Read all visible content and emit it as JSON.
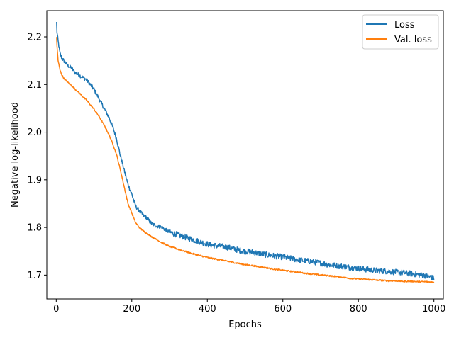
{
  "chart_data": {
    "type": "line",
    "title": "",
    "xlabel": "Epochs",
    "ylabel": "Negative log-likelihood",
    "xlim": [
      -25,
      1025
    ],
    "ylim": [
      1.65,
      2.255
    ],
    "x_ticks": [
      0,
      200,
      400,
      600,
      800,
      1000
    ],
    "y_ticks": [
      1.7,
      1.8,
      1.9,
      2.0,
      2.1,
      2.2
    ],
    "grid": false,
    "legend_position": "top-right",
    "series": [
      {
        "name": "Loss",
        "color": "#1f77b4",
        "noise": "high",
        "x": [
          1,
          2,
          5,
          10,
          15,
          20,
          30,
          40,
          50,
          60,
          70,
          80,
          90,
          100,
          110,
          120,
          130,
          140,
          150,
          160,
          170,
          180,
          190,
          200,
          210,
          220,
          230,
          240,
          250,
          260,
          280,
          300,
          320,
          340,
          360,
          380,
          400,
          420,
          440,
          460,
          480,
          500,
          520,
          540,
          560,
          580,
          600,
          620,
          640,
          660,
          680,
          700,
          720,
          740,
          760,
          780,
          800,
          820,
          840,
          860,
          880,
          900,
          920,
          940,
          960,
          980,
          1000
        ],
        "y": [
          2.23,
          2.21,
          2.19,
          2.165,
          2.155,
          2.15,
          2.14,
          2.135,
          2.125,
          2.12,
          2.115,
          2.11,
          2.1,
          2.09,
          2.075,
          2.06,
          2.045,
          2.03,
          2.01,
          1.985,
          1.95,
          1.92,
          1.89,
          1.87,
          1.845,
          1.835,
          1.825,
          1.82,
          1.81,
          1.805,
          1.8,
          1.79,
          1.785,
          1.78,
          1.775,
          1.77,
          1.765,
          1.762,
          1.76,
          1.757,
          1.753,
          1.75,
          1.748,
          1.745,
          1.742,
          1.74,
          1.738,
          1.735,
          1.732,
          1.73,
          1.728,
          1.725,
          1.722,
          1.72,
          1.718,
          1.716,
          1.714,
          1.712,
          1.71,
          1.709,
          1.708,
          1.706,
          1.705,
          1.703,
          1.701,
          1.699,
          1.693
        ]
      },
      {
        "name": "Val. loss",
        "color": "#ff7f0e",
        "noise": "low",
        "x": [
          1,
          2,
          5,
          10,
          15,
          20,
          30,
          40,
          50,
          60,
          70,
          80,
          90,
          100,
          110,
          120,
          130,
          140,
          150,
          160,
          170,
          180,
          190,
          200,
          210,
          220,
          230,
          240,
          250,
          260,
          280,
          300,
          320,
          340,
          360,
          380,
          400,
          420,
          440,
          460,
          480,
          500,
          520,
          540,
          560,
          580,
          600,
          620,
          640,
          660,
          680,
          700,
          720,
          740,
          760,
          780,
          800,
          820,
          840,
          860,
          880,
          900,
          920,
          940,
          960,
          980,
          1000
        ],
        "y": [
          2.2,
          2.18,
          2.15,
          2.13,
          2.12,
          2.113,
          2.105,
          2.098,
          2.09,
          2.083,
          2.075,
          2.067,
          2.058,
          2.048,
          2.037,
          2.024,
          2.01,
          1.994,
          1.975,
          1.952,
          1.92,
          1.885,
          1.85,
          1.83,
          1.81,
          1.8,
          1.793,
          1.787,
          1.782,
          1.777,
          1.768,
          1.76,
          1.755,
          1.75,
          1.745,
          1.741,
          1.737,
          1.734,
          1.731,
          1.728,
          1.725,
          1.722,
          1.72,
          1.717,
          1.715,
          1.712,
          1.71,
          1.708,
          1.706,
          1.704,
          1.702,
          1.7,
          1.699,
          1.697,
          1.695,
          1.693,
          1.692,
          1.691,
          1.69,
          1.689,
          1.688,
          1.688,
          1.687,
          1.687,
          1.686,
          1.686,
          1.685
        ]
      }
    ]
  }
}
